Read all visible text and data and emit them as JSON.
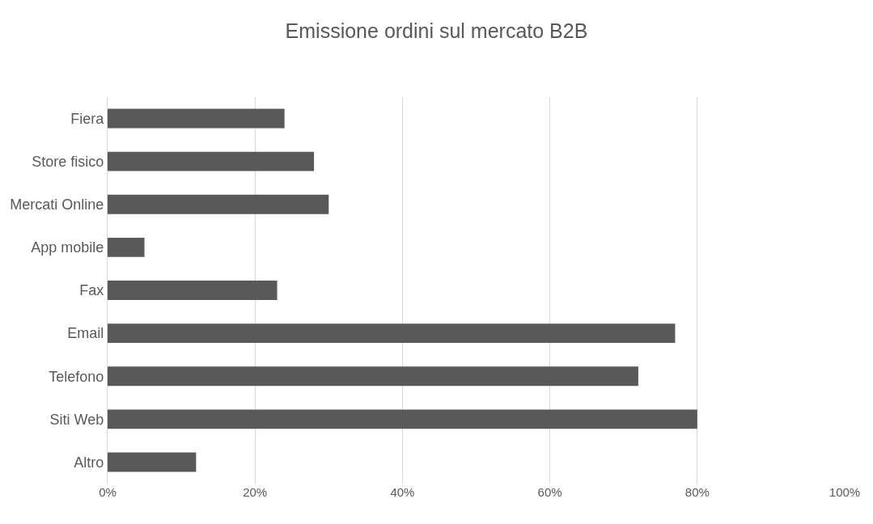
{
  "chart_data": {
    "type": "bar",
    "orientation": "horizontal",
    "title": "Emissione ordini sul mercato B2B",
    "categories": [
      "Fiera",
      "Store fisico",
      "Mercati Online",
      "App mobile",
      "Fax",
      "Email",
      "Telefono",
      "Siti Web",
      "Altro"
    ],
    "values": [
      24,
      28,
      30,
      5,
      23,
      77,
      72,
      80,
      12
    ],
    "color": "#595959",
    "xlim": [
      0,
      100
    ],
    "xticks": [
      {
        "value": 0,
        "label": "0%"
      },
      {
        "value": 20,
        "label": "20%"
      },
      {
        "value": 40,
        "label": "40%"
      },
      {
        "value": 60,
        "label": "60%"
      },
      {
        "value": 80,
        "label": "80%"
      },
      {
        "value": 100,
        "label": "100%"
      }
    ],
    "grid": "x",
    "legend": false
  }
}
